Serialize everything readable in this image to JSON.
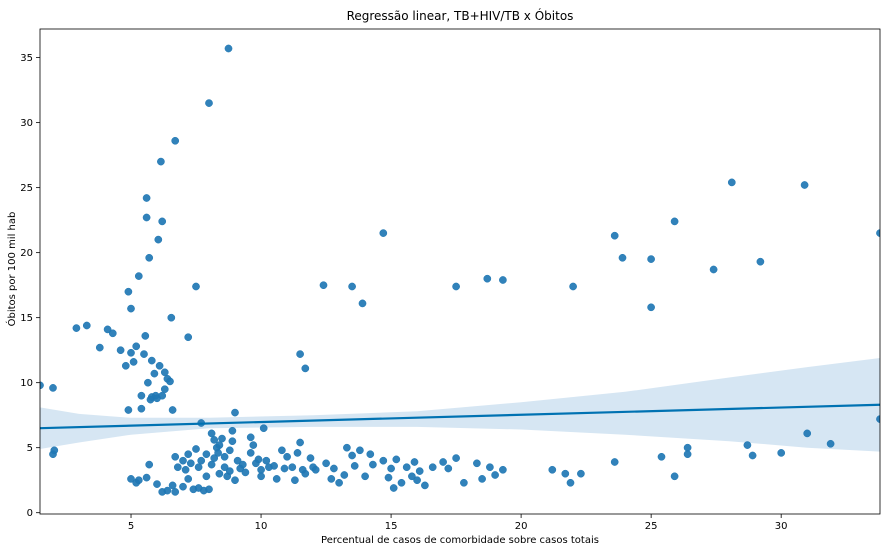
{
  "chart_data": {
    "type": "scatter",
    "title": "Regressão linear, TB+HIV/TB x Óbitos",
    "xlabel": "Percentual de casos de comorbidade sobre casos totais",
    "ylabel": "Óbitos por 100 mil hab",
    "xlim": [
      1.5,
      33.8
    ],
    "ylim": [
      -0.1,
      37.2
    ],
    "xticks": [
      5,
      10,
      15,
      20,
      25,
      30
    ],
    "yticks": [
      0,
      5,
      10,
      15,
      20,
      25,
      30,
      35
    ],
    "grid": false,
    "colors": {
      "points": "#1f77b4",
      "line": "#0072b2",
      "band": "#cfe2f1"
    },
    "regression": {
      "x": [
        1.5,
        33.8
      ],
      "y": [
        6.5,
        8.3
      ]
    },
    "confidence_band": {
      "x": [
        1.5,
        3,
        5,
        8,
        12,
        16,
        20,
        24,
        28,
        31,
        33.8
      ],
      "lower": [
        4.9,
        5.4,
        6.0,
        6.5,
        6.6,
        6.6,
        6.4,
        6.0,
        5.5,
        5.0,
        4.7
      ],
      "upper": [
        8.1,
        7.6,
        7.3,
        7.3,
        7.5,
        7.8,
        8.5,
        9.3,
        10.4,
        11.2,
        11.9
      ]
    },
    "points": [
      [
        1.5,
        9.8
      ],
      [
        2.0,
        9.6
      ],
      [
        2.0,
        4.5
      ],
      [
        2.05,
        4.8
      ],
      [
        2.9,
        14.2
      ],
      [
        3.3,
        14.4
      ],
      [
        3.8,
        12.7
      ],
      [
        4.1,
        14.1
      ],
      [
        4.3,
        13.8
      ],
      [
        4.6,
        12.5
      ],
      [
        4.8,
        11.3
      ],
      [
        4.9,
        7.9
      ],
      [
        4.9,
        17.0
      ],
      [
        5.0,
        15.7
      ],
      [
        5.0,
        12.3
      ],
      [
        5.1,
        11.6
      ],
      [
        5.2,
        12.8
      ],
      [
        5.3,
        18.2
      ],
      [
        5.4,
        9.0
      ],
      [
        5.4,
        8.0
      ],
      [
        5.5,
        12.2
      ],
      [
        5.55,
        13.6
      ],
      [
        5.6,
        22.7
      ],
      [
        5.6,
        24.2
      ],
      [
        5.7,
        19.6
      ],
      [
        5.65,
        10.0
      ],
      [
        5.8,
        11.7
      ],
      [
        5.75,
        8.7
      ],
      [
        5.8,
        8.9
      ],
      [
        5.9,
        10.7
      ],
      [
        5.95,
        9.0
      ],
      [
        6.0,
        8.8
      ],
      [
        6.05,
        21.0
      ],
      [
        6.1,
        11.3
      ],
      [
        6.2,
        9.0
      ],
      [
        6.15,
        27.0
      ],
      [
        6.2,
        22.4
      ],
      [
        6.3,
        10.8
      ],
      [
        6.4,
        10.3
      ],
      [
        6.3,
        9.5
      ],
      [
        6.5,
        10.1
      ],
      [
        6.55,
        15.0
      ],
      [
        6.6,
        7.9
      ],
      [
        6.7,
        28.6
      ],
      [
        7.2,
        13.5
      ],
      [
        7.5,
        17.4
      ],
      [
        7.7,
        6.9
      ],
      [
        8.0,
        31.5
      ],
      [
        8.75,
        35.7
      ],
      [
        9.0,
        7.7
      ],
      [
        10.1,
        6.5
      ],
      [
        11.5,
        12.2
      ],
      [
        11.7,
        11.1
      ],
      [
        12.4,
        17.5
      ],
      [
        13.5,
        17.4
      ],
      [
        13.9,
        16.1
      ],
      [
        14.7,
        21.5
      ],
      [
        17.5,
        17.4
      ],
      [
        18.7,
        18.0
      ],
      [
        19.3,
        17.9
      ],
      [
        22.0,
        17.4
      ],
      [
        23.6,
        21.3
      ],
      [
        23.9,
        19.6
      ],
      [
        25.0,
        19.5
      ],
      [
        25.0,
        15.8
      ],
      [
        25.9,
        22.4
      ],
      [
        27.4,
        18.7
      ],
      [
        28.1,
        25.4
      ],
      [
        29.2,
        19.3
      ],
      [
        30.9,
        25.2
      ],
      [
        31.0,
        6.1
      ],
      [
        31.9,
        5.3
      ],
      [
        33.8,
        7.2
      ],
      [
        33.8,
        21.5
      ],
      [
        5.0,
        2.6
      ],
      [
        5.2,
        2.3
      ],
      [
        5.3,
        2.5
      ],
      [
        5.6,
        2.7
      ],
      [
        5.7,
        3.7
      ],
      [
        6.0,
        2.2
      ],
      [
        6.2,
        1.6
      ],
      [
        6.4,
        1.7
      ],
      [
        6.6,
        2.1
      ],
      [
        6.7,
        1.6
      ],
      [
        6.7,
        4.3
      ],
      [
        6.8,
        3.5
      ],
      [
        7.0,
        2.0
      ],
      [
        7.0,
        4.0
      ],
      [
        7.1,
        3.3
      ],
      [
        7.2,
        2.6
      ],
      [
        7.2,
        4.5
      ],
      [
        7.3,
        3.8
      ],
      [
        7.4,
        1.8
      ],
      [
        7.5,
        4.9
      ],
      [
        7.6,
        3.5
      ],
      [
        7.6,
        1.9
      ],
      [
        7.7,
        4.0
      ],
      [
        7.8,
        1.7
      ],
      [
        7.9,
        4.5
      ],
      [
        7.9,
        2.8
      ],
      [
        8.0,
        1.8
      ],
      [
        8.1,
        3.7
      ],
      [
        8.1,
        6.1
      ],
      [
        8.2,
        4.2
      ],
      [
        8.2,
        5.6
      ],
      [
        8.3,
        5.0
      ],
      [
        8.35,
        4.6
      ],
      [
        8.4,
        3.0
      ],
      [
        8.4,
        5.2
      ],
      [
        8.5,
        5.7
      ],
      [
        8.6,
        4.3
      ],
      [
        8.6,
        3.5
      ],
      [
        8.7,
        2.8
      ],
      [
        8.8,
        4.8
      ],
      [
        8.8,
        3.2
      ],
      [
        8.9,
        6.3
      ],
      [
        8.9,
        5.5
      ],
      [
        9.0,
        2.5
      ],
      [
        9.1,
        4.0
      ],
      [
        9.2,
        3.4
      ],
      [
        9.3,
        3.7
      ],
      [
        9.4,
        3.1
      ],
      [
        9.6,
        5.8
      ],
      [
        9.6,
        4.6
      ],
      [
        9.7,
        5.2
      ],
      [
        9.8,
        3.8
      ],
      [
        9.9,
        4.1
      ],
      [
        10.0,
        3.3
      ],
      [
        10.0,
        2.8
      ],
      [
        10.2,
        4.0
      ],
      [
        10.3,
        3.5
      ],
      [
        10.5,
        3.6
      ],
      [
        10.6,
        2.6
      ],
      [
        10.8,
        4.8
      ],
      [
        10.9,
        3.4
      ],
      [
        11.0,
        4.3
      ],
      [
        11.2,
        3.5
      ],
      [
        11.3,
        2.5
      ],
      [
        11.4,
        4.6
      ],
      [
        11.5,
        5.4
      ],
      [
        11.6,
        3.3
      ],
      [
        11.7,
        3.0
      ],
      [
        11.9,
        4.2
      ],
      [
        12.0,
        3.5
      ],
      [
        12.1,
        3.3
      ],
      [
        12.5,
        3.8
      ],
      [
        12.7,
        2.6
      ],
      [
        12.8,
        3.4
      ],
      [
        13.0,
        2.3
      ],
      [
        13.2,
        2.9
      ],
      [
        13.3,
        5.0
      ],
      [
        13.5,
        4.4
      ],
      [
        13.6,
        3.6
      ],
      [
        13.8,
        4.8
      ],
      [
        14.0,
        2.8
      ],
      [
        14.2,
        4.5
      ],
      [
        14.3,
        3.7
      ],
      [
        14.7,
        4.0
      ],
      [
        14.9,
        2.7
      ],
      [
        15.0,
        3.4
      ],
      [
        15.1,
        1.9
      ],
      [
        15.2,
        4.1
      ],
      [
        15.4,
        2.3
      ],
      [
        15.6,
        3.5
      ],
      [
        15.8,
        2.8
      ],
      [
        15.9,
        3.9
      ],
      [
        16.0,
        2.5
      ],
      [
        16.1,
        3.2
      ],
      [
        16.3,
        2.1
      ],
      [
        16.6,
        3.5
      ],
      [
        17.0,
        3.9
      ],
      [
        17.2,
        3.4
      ],
      [
        17.5,
        4.2
      ],
      [
        17.8,
        2.3
      ],
      [
        18.3,
        3.8
      ],
      [
        18.5,
        2.6
      ],
      [
        18.8,
        3.5
      ],
      [
        19.0,
        2.9
      ],
      [
        19.3,
        3.3
      ],
      [
        21.2,
        3.3
      ],
      [
        21.7,
        3.0
      ],
      [
        21.9,
        2.3
      ],
      [
        22.3,
        3.0
      ],
      [
        23.6,
        3.9
      ],
      [
        25.4,
        4.3
      ],
      [
        25.9,
        2.8
      ],
      [
        26.4,
        5.0
      ],
      [
        26.4,
        4.5
      ],
      [
        28.7,
        5.2
      ],
      [
        28.9,
        4.4
      ],
      [
        30.0,
        4.6
      ]
    ]
  }
}
